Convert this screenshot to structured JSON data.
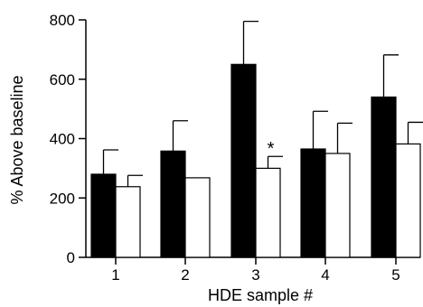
{
  "chart_data": {
    "type": "bar",
    "xlabel": "HDE sample #",
    "ylabel": "% Above baseline",
    "ylim": [
      0,
      800
    ],
    "yticks": [
      "0",
      "200",
      "400",
      "600",
      "800"
    ],
    "categories": [
      "1",
      "2",
      "3",
      "4",
      "5"
    ],
    "series": [
      {
        "fill": "#000000",
        "values": [
          280,
          358,
          650,
          365,
          540
        ],
        "errors": [
          82,
          102,
          145,
          127,
          142
        ]
      },
      {
        "fill": "#ffffff",
        "values": [
          238,
          268,
          300,
          350,
          382
        ],
        "errors": [
          38,
          0,
          40,
          102,
          73
        ]
      }
    ],
    "annotations": [
      {
        "category": "3",
        "series": 1,
        "text": "*"
      }
    ],
    "grid": false,
    "legend": "none"
  }
}
